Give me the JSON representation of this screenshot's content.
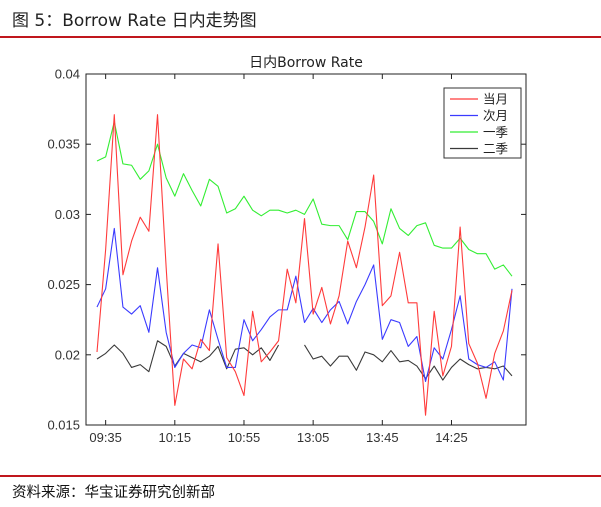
{
  "figure": {
    "caption": "图 5：Borrow Rate 日内走势图",
    "source": "资料来源：华宝证券研究创新部"
  },
  "colors": {
    "accent_rule": "#c0161d",
    "series": [
      "#ff3b3b",
      "#3b3bff",
      "#33ee33",
      "#3a3a3a"
    ]
  },
  "chart_data": {
    "type": "line",
    "title": "日内Borrow Rate",
    "xlabel": "",
    "ylabel": "",
    "x_tick_labels": [
      "09:35",
      "10:15",
      "10:55",
      "13:05",
      "13:45",
      "14:25"
    ],
    "x_tick_index": [
      1,
      9,
      17,
      25,
      33,
      41
    ],
    "y_ticks": [
      "0.015",
      "0.02",
      "0.025",
      "0.03",
      "0.035",
      "0.04"
    ],
    "ylim": [
      0.015,
      0.04
    ],
    "grid": false,
    "legend_position": "top-right",
    "series": [
      {
        "name": "当月",
        "values": [
          0.0202,
          0.0275,
          0.0371,
          0.0257,
          0.0281,
          0.0298,
          0.0288,
          0.0371,
          0.0262,
          0.0164,
          0.0197,
          0.019,
          0.0211,
          0.0203,
          0.0279,
          0.0198,
          0.0188,
          0.0171,
          0.0231,
          0.0195,
          0.0202,
          0.021,
          0.0261,
          0.0237,
          0.0297,
          0.0229,
          0.0248,
          0.0222,
          0.0242,
          0.0281,
          0.0262,
          0.0291,
          0.0328,
          0.0235,
          0.0242,
          0.0273,
          0.0237,
          0.0237,
          0.0157,
          0.0231,
          0.0185,
          0.0206,
          0.0291,
          0.0208,
          0.0194,
          0.0169,
          0.0201,
          0.0217,
          0.0246
        ]
      },
      {
        "name": "次月",
        "values": [
          0.0234,
          0.0247,
          0.029,
          0.0234,
          0.0229,
          0.0235,
          0.0216,
          0.0262,
          0.0216,
          0.0191,
          0.0201,
          0.0207,
          0.0205,
          0.0232,
          0.0211,
          0.0191,
          0.0191,
          0.0225,
          0.021,
          0.0218,
          0.0227,
          0.0232,
          0.0232,
          0.0256,
          0.0223,
          0.0233,
          0.0223,
          0.0232,
          0.0238,
          0.0222,
          0.0238,
          0.025,
          0.0264,
          0.0211,
          0.0225,
          0.0223,
          0.0206,
          0.0213,
          0.0181,
          0.0205,
          0.0197,
          0.0218,
          0.0242,
          0.0197,
          0.0193,
          0.0191,
          0.0195,
          0.0182,
          0.0247
        ]
      },
      {
        "name": "一季",
        "values": [
          0.0338,
          0.0341,
          0.0366,
          0.0336,
          0.0335,
          0.0325,
          0.0331,
          0.035,
          0.0326,
          0.0313,
          0.0329,
          0.0317,
          0.0306,
          0.0325,
          0.032,
          0.0301,
          0.0304,
          0.0313,
          0.0303,
          0.0299,
          0.0303,
          0.0303,
          0.0301,
          0.0303,
          0.03,
          0.0311,
          0.0293,
          0.0292,
          0.0292,
          0.0282,
          0.0302,
          0.0302,
          0.0295,
          0.0279,
          0.0304,
          0.029,
          0.0285,
          0.0292,
          0.0294,
          0.0278,
          0.0276,
          0.0276,
          0.0283,
          0.0275,
          0.0272,
          0.0272,
          0.0261,
          0.0264,
          0.0256
        ]
      },
      {
        "name": "二季",
        "values": [
          0.0197,
          0.0201,
          0.0207,
          0.0201,
          0.0191,
          0.0193,
          0.0188,
          0.021,
          0.0206,
          0.0192,
          0.0201,
          0.0198,
          0.0195,
          0.0199,
          0.0206,
          0.019,
          0.0204,
          0.0205,
          0.02,
          0.0205,
          0.0196,
          0.0207,
          null,
          null,
          0.0207,
          0.0197,
          0.0199,
          0.0192,
          0.0199,
          0.0199,
          0.0189,
          0.0202,
          0.02,
          0.0195,
          0.0203,
          0.0195,
          0.0196,
          0.0192,
          0.0183,
          0.0192,
          0.0182,
          0.0191,
          0.0197,
          0.0193,
          0.019,
          0.0191,
          0.019,
          0.0192,
          0.0185
        ]
      }
    ]
  }
}
